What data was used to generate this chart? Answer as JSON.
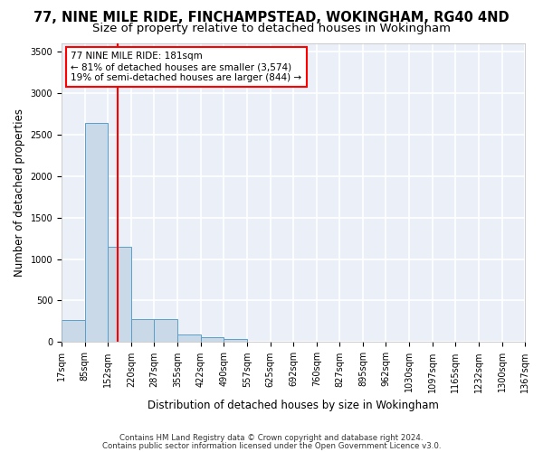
{
  "title1": "77, NINE MILE RIDE, FINCHAMPSTEAD, WOKINGHAM, RG40 4ND",
  "title2": "Size of property relative to detached houses in Wokingham",
  "xlabel": "Distribution of detached houses by size in Wokingham",
  "ylabel": "Number of detached properties",
  "footer1": "Contains HM Land Registry data © Crown copyright and database right 2024.",
  "footer2": "Contains public sector information licensed under the Open Government Licence v3.0.",
  "annotation_line1": "77 NINE MILE RIDE: 181sqm",
  "annotation_line2": "← 81% of detached houses are smaller (3,574)",
  "annotation_line3": "19% of semi-detached houses are larger (844) →",
  "bar_color": "#c9d9e8",
  "bar_edge_color": "#5a9fc8",
  "red_line_x": 181,
  "categories": [
    "17sqm",
    "85sqm",
    "152sqm",
    "220sqm",
    "287sqm",
    "355sqm",
    "422sqm",
    "490sqm",
    "557sqm",
    "625sqm",
    "692sqm",
    "760sqm",
    "827sqm",
    "895sqm",
    "962sqm",
    "1030sqm",
    "1097sqm",
    "1165sqm",
    "1232sqm",
    "1300sqm",
    "1367sqm"
  ],
  "bin_edges": [
    17,
    85,
    152,
    220,
    287,
    355,
    422,
    490,
    557,
    625,
    692,
    760,
    827,
    895,
    962,
    1030,
    1097,
    1165,
    1232,
    1300,
    1367
  ],
  "values": [
    270,
    2640,
    1150,
    280,
    280,
    95,
    60,
    40,
    0,
    0,
    0,
    0,
    0,
    0,
    0,
    0,
    0,
    0,
    0,
    0
  ],
  "ylim": [
    0,
    3600
  ],
  "yticks": [
    0,
    500,
    1000,
    1500,
    2000,
    2500,
    3000,
    3500
  ],
  "background_color": "#eaeff8",
  "grid_color": "#ffffff",
  "title_fontsize": 10.5,
  "subtitle_fontsize": 9.5,
  "axis_fontsize": 8.5,
  "tick_fontsize": 7
}
